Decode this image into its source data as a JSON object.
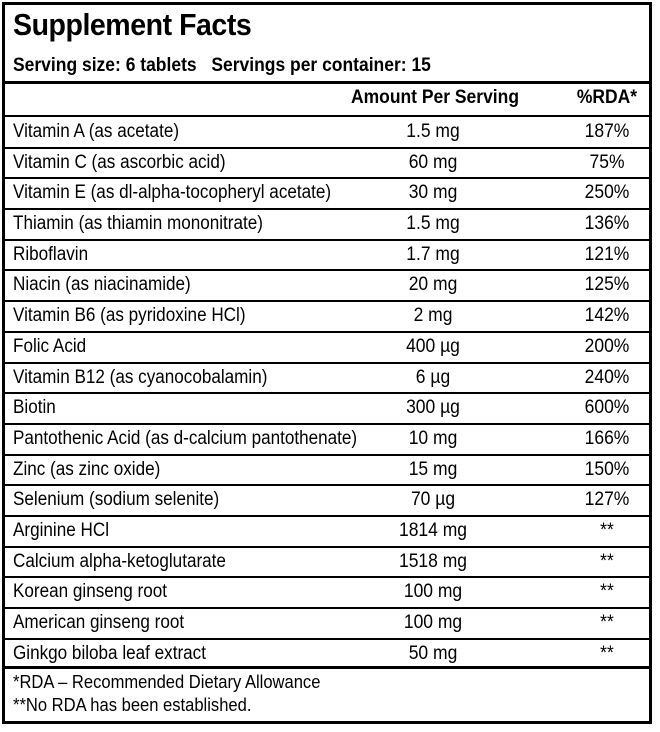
{
  "title": "Supplement Facts",
  "serving": {
    "size": "Serving size: 6 tablets",
    "per_container": "Servings per container: 15"
  },
  "headers": {
    "amount": "Amount Per Serving",
    "rda": "%RDA*"
  },
  "nutrients": [
    {
      "name": "Vitamin A (as acetate)",
      "amount": "1.5 mg",
      "rda": "187%"
    },
    {
      "name": "Vitamin C (as ascorbic acid)",
      "amount": "60 mg",
      "rda": "75%"
    },
    {
      "name": "Vitamin E (as dl-alpha-tocopheryl acetate)",
      "amount": "30 mg",
      "rda": "250%"
    },
    {
      "name": "Thiamin (as thiamin mononitrate)",
      "amount": "1.5 mg",
      "rda": "136%"
    },
    {
      "name": "Riboflavin",
      "amount": "1.7 mg",
      "rda": "121%"
    },
    {
      "name": "Niacin (as niacinamide)",
      "amount": "20 mg",
      "rda": "125%"
    },
    {
      "name": "Vitamin B6 (as pyridoxine HCl)",
      "amount": "2 mg",
      "rda": "142%"
    },
    {
      "name": "Folic Acid",
      "amount": "400 µg",
      "rda": "200%"
    },
    {
      "name": "Vitamin B12 (as cyanocobalamin)",
      "amount": "6 µg",
      "rda": "240%"
    },
    {
      "name": "Biotin",
      "amount": "300 µg",
      "rda": "600%"
    },
    {
      "name": "Pantothenic Acid (as d-calcium pantothenate)",
      "amount": "10 mg",
      "rda": "166%"
    },
    {
      "name": "Zinc (as zinc oxide)",
      "amount": "15 mg",
      "rda": "150%"
    },
    {
      "name": "Selenium (sodium selenite)",
      "amount": "70 µg",
      "rda": "127%"
    },
    {
      "name": "Arginine HCl",
      "amount": "1814 mg",
      "rda": "**"
    },
    {
      "name": "Calcium alpha-ketoglutarate",
      "amount": "1518 mg",
      "rda": "**"
    },
    {
      "name": "Korean ginseng root",
      "amount": "100 mg",
      "rda": "**"
    },
    {
      "name": "American ginseng root",
      "amount": "100 mg",
      "rda": "**"
    },
    {
      "name": "Ginkgo biloba leaf extract",
      "amount": "50 mg",
      "rda": "**"
    }
  ],
  "footnotes": [
    "*RDA – Recommended Dietary Allowance",
    "**No RDA has been established."
  ]
}
